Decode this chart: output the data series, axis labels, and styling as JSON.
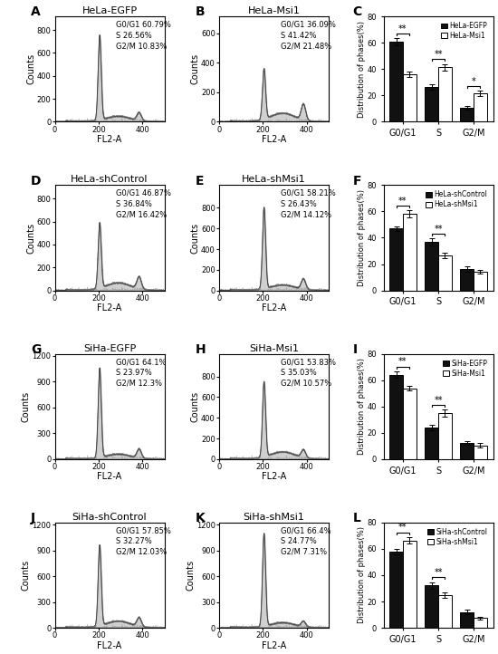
{
  "panels": {
    "A": {
      "title": "HeLa-EGFP",
      "g0g1": 60.79,
      "s": 26.56,
      "g2m": 10.83,
      "ymax": 900,
      "yticks": [
        0,
        200,
        400,
        600,
        800
      ]
    },
    "B": {
      "title": "HeLa-Msi1",
      "g0g1": 36.09,
      "s": 41.42,
      "g2m": 21.48,
      "ymax": 700,
      "yticks": [
        0,
        200,
        400,
        600
      ]
    },
    "D": {
      "title": "HeLa-shControl",
      "g0g1": 46.87,
      "s": 36.84,
      "g2m": 16.42,
      "ymax": 900,
      "yticks": [
        0,
        200,
        400,
        600,
        800
      ]
    },
    "E": {
      "title": "HeLa-shMsi1",
      "g0g1": 58.21,
      "s": 26.43,
      "g2m": 14.12,
      "ymax": 1000,
      "yticks": [
        0,
        200,
        400,
        600,
        800
      ]
    },
    "G": {
      "title": "SiHa-EGFP",
      "g0g1": 64.1,
      "s": 23.97,
      "g2m": 12.3,
      "ymax": 1200,
      "yticks": [
        0,
        300,
        600,
        900,
        1200
      ]
    },
    "H": {
      "title": "SiHa-Msi1",
      "g0g1": 53.83,
      "s": 35.03,
      "g2m": 10.57,
      "ymax": 1000,
      "yticks": [
        0,
        200,
        400,
        600,
        800
      ]
    },
    "J": {
      "title": "SiHa-shControl",
      "g0g1": 57.85,
      "s": 32.27,
      "g2m": 12.03,
      "ymax": 1200,
      "yticks": [
        0,
        300,
        600,
        900,
        1200
      ]
    },
    "K": {
      "title": "SiHa-shMsi1",
      "g0g1": 66.4,
      "s": 24.77,
      "g2m": 7.31,
      "ymax": 1200,
      "yticks": [
        0,
        300,
        600,
        900,
        1200
      ]
    }
  },
  "bar_charts": {
    "C": {
      "label1": "HeLa-EGFP",
      "label2": "HeLa-Msi1",
      "g0g1": [
        60.79,
        36.09
      ],
      "s": [
        26.56,
        41.42
      ],
      "g2m": [
        10.83,
        21.48
      ],
      "err1": [
        2.5,
        2.0,
        1.5
      ],
      "err2": [
        2.0,
        2.5,
        2.0
      ],
      "sig": [
        "**",
        "**",
        "*"
      ],
      "ymax": 80
    },
    "F": {
      "label1": "HeLa-shControl",
      "label2": "HeLa-shMsi1",
      "g0g1": [
        46.87,
        58.21
      ],
      "s": [
        36.84,
        26.43
      ],
      "g2m": [
        16.42,
        14.12
      ],
      "err1": [
        2.0,
        2.5,
        2.0
      ],
      "err2": [
        2.5,
        2.0,
        1.5
      ],
      "sig": [
        "**",
        "**",
        ""
      ],
      "ymax": 80
    },
    "I": {
      "label1": "SiHa-EGFP",
      "label2": "SiHa-Msi1",
      "g0g1": [
        64.1,
        53.83
      ],
      "s": [
        23.97,
        35.03
      ],
      "g2m": [
        12.3,
        10.57
      ],
      "err1": [
        2.5,
        2.0,
        1.5
      ],
      "err2": [
        2.0,
        2.5,
        1.5
      ],
      "sig": [
        "**",
        "**",
        ""
      ],
      "ymax": 80
    },
    "L": {
      "label1": "SiHa-shControl",
      "label2": "SiHa-shMsi1",
      "g0g1": [
        57.85,
        66.4
      ],
      "s": [
        32.27,
        24.77
      ],
      "g2m": [
        12.03,
        7.31
      ],
      "err1": [
        2.0,
        2.5,
        1.5
      ],
      "err2": [
        2.5,
        2.0,
        1.0
      ],
      "sig": [
        "**",
        "**",
        ""
      ],
      "ymax": 80
    }
  },
  "bar_color1": "#111111",
  "bar_color2": "#ffffff"
}
